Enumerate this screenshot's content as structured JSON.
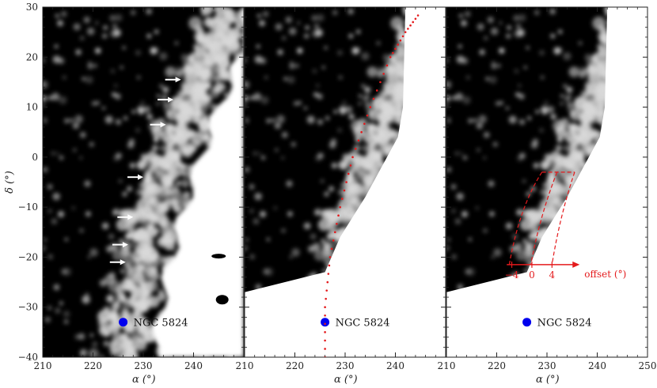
{
  "colors": {
    "background": "#ffffff",
    "sky": "#000000",
    "stream": "#d9d9d9",
    "cluster": "#0000ee",
    "track": "#e41a1c",
    "arrow": "#ffffff"
  },
  "chart_data": {
    "type": "heatmap",
    "xlabel": "α (°)",
    "ylabel": "δ (°)",
    "xlim": [
      210,
      250
    ],
    "ylim": [
      -40,
      30
    ],
    "xticks": [
      "210",
      "220",
      "230",
      "240",
      "210",
      "220",
      "230",
      "240",
      "210",
      "220",
      "230",
      "240",
      "250"
    ],
    "yticks": [
      "30",
      "20",
      "10",
      "0",
      "−10",
      "−20",
      "−30",
      "−40"
    ],
    "cluster": {
      "label": "NGC 5824",
      "ra": 226,
      "dec": -33
    },
    "panels": [
      {
        "name": "raw density map",
        "arrows": [
          {
            "ra": 237.5,
            "dec": 15.5
          },
          {
            "ra": 236,
            "dec": 11.5
          },
          {
            "ra": 234.5,
            "dec": 6.5
          },
          {
            "ra": 230,
            "dec": -4
          },
          {
            "ra": 228,
            "dec": -12
          },
          {
            "ra": 227,
            "dec": -17.5
          },
          {
            "ra": 226.5,
            "dec": -21
          }
        ]
      },
      {
        "name": "masked map with orbit track",
        "track": [
          {
            "ra": 226,
            "dec": -40
          },
          {
            "ra": 226,
            "dec": -30
          },
          {
            "ra": 227,
            "dec": -20
          },
          {
            "ra": 229,
            "dec": -10
          },
          {
            "ra": 231.5,
            "dec": 0
          },
          {
            "ra": 235,
            "dec": 10
          },
          {
            "ra": 239,
            "dec": 20
          },
          {
            "ra": 242,
            "dec": 25
          },
          {
            "ra": 245,
            "dec": 29
          }
        ]
      },
      {
        "name": "masked map with offset box",
        "offset_axis": {
          "label": "offset (°)",
          "ticks": [
            "−4",
            "0",
            "4"
          ]
        }
      }
    ]
  }
}
